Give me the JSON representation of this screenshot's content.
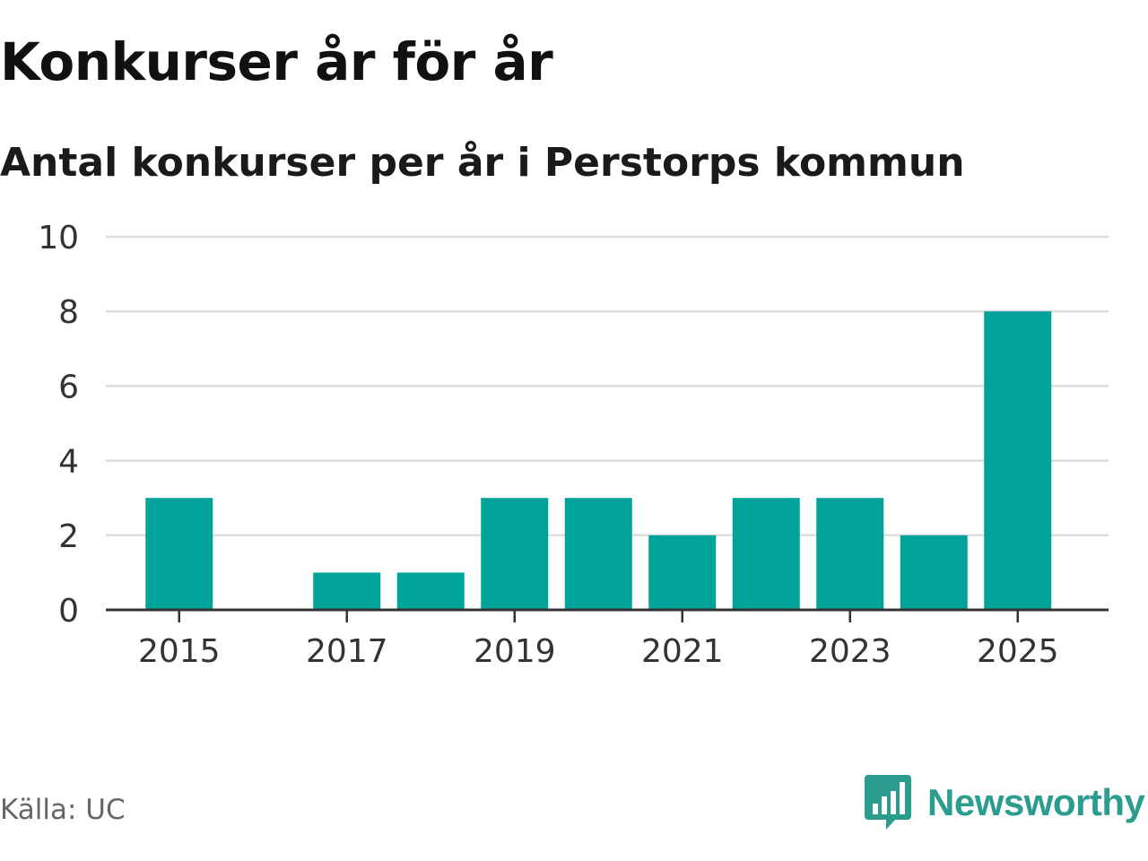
{
  "title": "Konkurser år för år",
  "subtitle": "Antal konkurser per år i Perstorps kommun",
  "source": "Källa: UC",
  "brand": {
    "name": "Newsworthy",
    "icon": "newsworthy-logo-icon"
  },
  "colors": {
    "bar": "#00a39a",
    "grid": "#dddddd",
    "axis": "#333333",
    "brand": "#2a9d8f"
  },
  "chart_data": {
    "type": "bar",
    "categories": [
      "2015",
      "2016",
      "2017",
      "2018",
      "2019",
      "2020",
      "2021",
      "2022",
      "2023",
      "2024",
      "2025"
    ],
    "values": [
      3,
      0,
      1,
      1,
      3,
      3,
      2,
      3,
      3,
      2,
      8
    ],
    "xtick_labels": [
      "2015",
      "2017",
      "2019",
      "2021",
      "2023",
      "2025"
    ],
    "yticks": [
      0,
      2,
      4,
      6,
      8,
      10
    ],
    "ylim": [
      0,
      10
    ],
    "xlabel": "",
    "ylabel": "",
    "grid": true,
    "legend": false
  }
}
